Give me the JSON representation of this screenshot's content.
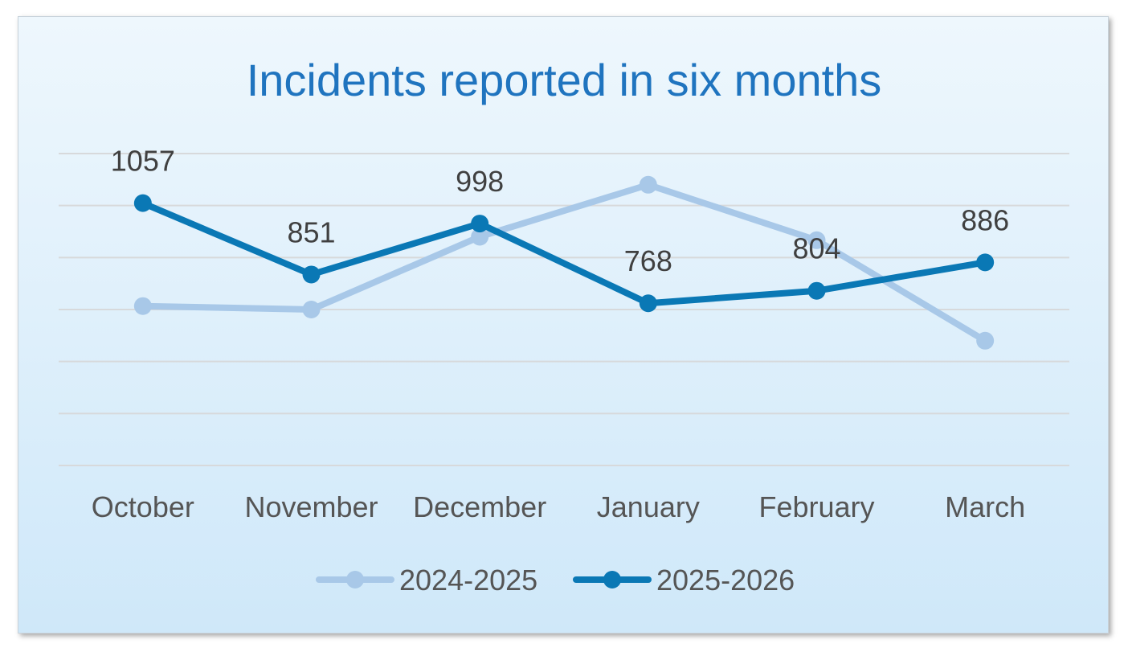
{
  "chart_data": {
    "type": "line",
    "title": "Incidents reported in six months",
    "categories": [
      "October",
      "November",
      "December",
      "January",
      "February",
      "March"
    ],
    "ylim": [
      300,
      1200
    ],
    "grid": true,
    "legend_position": "bottom",
    "series": [
      {
        "name": "2024-2025",
        "values": [
          760,
          750,
          960,
          1110,
          950,
          660
        ],
        "color": "#a8c8e8",
        "show_labels": false
      },
      {
        "name": "2025-2026",
        "values": [
          1057,
          851,
          998,
          768,
          804,
          886
        ],
        "color": "#0a78b5",
        "show_labels": true
      }
    ]
  }
}
